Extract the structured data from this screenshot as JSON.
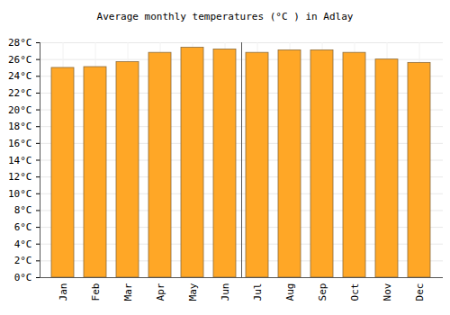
{
  "chart_data": {
    "type": "bar",
    "title": "Average monthly temperatures (°C ) in Adlay",
    "categories": [
      "Jan",
      "Feb",
      "Mar",
      "Apr",
      "May",
      "Jun",
      "Jul",
      "Aug",
      "Sep",
      "Oct",
      "Nov",
      "Dec"
    ],
    "values": [
      25.0,
      25.1,
      25.7,
      26.8,
      27.4,
      27.2,
      26.8,
      27.1,
      27.1,
      26.8,
      26.0,
      25.6
    ],
    "color": "#ffa726",
    "ylim": [
      0,
      28
    ],
    "yticks": [
      {
        "value": 0,
        "label": "0°C"
      },
      {
        "value": 2,
        "label": "2°C"
      },
      {
        "value": 4,
        "label": "4°C"
      },
      {
        "value": 6,
        "label": "6°C"
      },
      {
        "value": 8,
        "label": "8°C"
      },
      {
        "value": 10,
        "label": "10°C"
      },
      {
        "value": 12,
        "label": "12°C"
      },
      {
        "value": 14,
        "label": "14°C"
      },
      {
        "value": 16,
        "label": "16°C"
      },
      {
        "value": 18,
        "label": "18°C"
      },
      {
        "value": 20,
        "label": "20°C"
      },
      {
        "value": 22,
        "label": "22°C"
      },
      {
        "value": 24,
        "label": "24°C"
      },
      {
        "value": 26,
        "label": "26°C"
      },
      {
        "value": 28,
        "label": "28°C"
      }
    ],
    "grid": true
  }
}
